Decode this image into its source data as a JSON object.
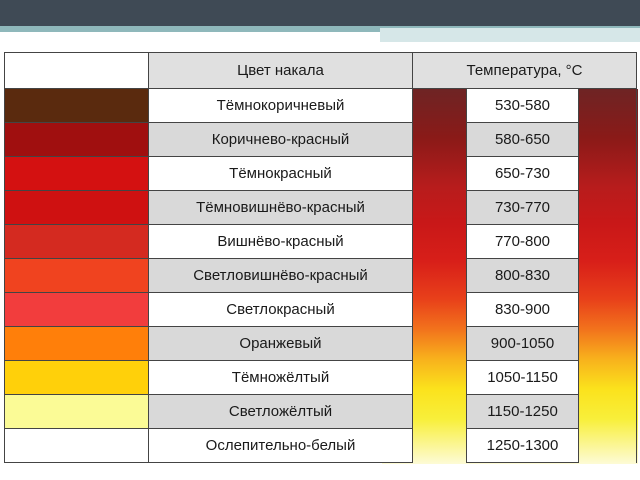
{
  "header": {
    "color_col": "Цвет накала",
    "temp_col": "Температура, °С"
  },
  "rows": [
    {
      "swatch": "#5a2a0e",
      "name": "Тёмнокоричневый",
      "temp": "530-580"
    },
    {
      "swatch": "#a00f0f",
      "name": "Коричнево-красный",
      "temp": "580-650"
    },
    {
      "swatch": "#d41111",
      "name": "Тёмнокрасный",
      "temp": "650-730"
    },
    {
      "swatch": "#cf1111",
      "name": "Тёмновишнёво-красный",
      "temp": "730-770"
    },
    {
      "swatch": "#d42a20",
      "name": "Вишнёво-красный",
      "temp": "770-800"
    },
    {
      "swatch": "#f0431f",
      "name": "Светловишнёво-красный",
      "temp": "800-830"
    },
    {
      "swatch": "#f23d3d",
      "name": "Светлокрасный",
      "temp": "830-900"
    },
    {
      "swatch": "#ff7f0a",
      "name": "Оранжевый",
      "temp": "900-1050"
    },
    {
      "swatch": "#ffd00a",
      "name": "Тёмножёлтый",
      "temp": "1050-1150"
    },
    {
      "swatch": "#fbfb96",
      "name": "Светложёлтый",
      "temp": "1150-1250"
    },
    {
      "swatch": "#ffffff",
      "name": "Ослепительно-белый",
      "temp": "1250-1300"
    }
  ]
}
